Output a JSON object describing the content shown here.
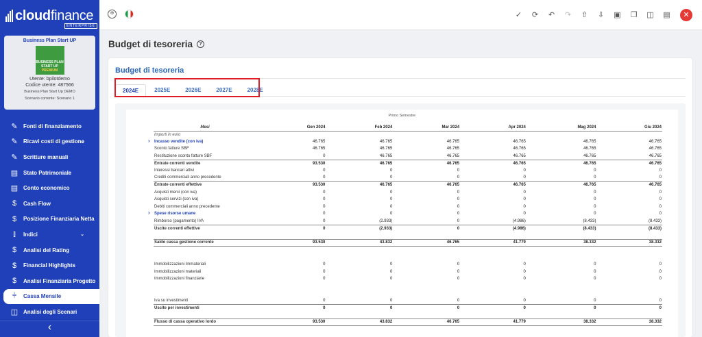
{
  "brand": {
    "name_bold": "cloud",
    "name_light": "finance",
    "edition": "ENTERPRISE"
  },
  "account": {
    "plan": "Business Plan Start UP",
    "thumb_line1": "BUSINESS PLAN",
    "thumb_line2": "START UP",
    "thumb_line3": "PREMIUM",
    "user": "Utente: bpilotdemo",
    "code": "Codice utente: 487566",
    "company": "Business Plan Start Up DEMO",
    "scenario": "Scenario corrente: Scenario 1"
  },
  "nav": [
    {
      "label": "Fonti di finanziamento",
      "icon": "edit-icon"
    },
    {
      "label": "Ricavi costi di gestione",
      "icon": "edit-icon"
    },
    {
      "label": "Scritture manuali",
      "icon": "edit-icon"
    },
    {
      "label": "Stato Patrimoniale",
      "icon": "document-icon"
    },
    {
      "label": "Conto economico",
      "icon": "document-icon"
    },
    {
      "label": "Cash Flow",
      "icon": "dollar-icon"
    },
    {
      "label": "Posizione Finanziaria Netta",
      "icon": "dollar-icon"
    },
    {
      "label": "Indici",
      "icon": "bar-chart-icon"
    },
    {
      "label": "Analisi del Rating",
      "icon": "dollar-icon"
    },
    {
      "label": "Financial Highlights",
      "icon": "dollar-icon"
    },
    {
      "label": "Analisi Finanziaria Progetto",
      "icon": "dollar-icon"
    },
    {
      "label": "Cassa Mensile",
      "icon": "sliders-icon"
    },
    {
      "label": "Analisi degli Scenari",
      "icon": "columns-icon"
    }
  ],
  "page": {
    "title": "Budget di tesoreria",
    "panel_title": "Budget di tesoreria"
  },
  "tabs": [
    "2024E",
    "2025E",
    "2026E",
    "2027E",
    "2028E"
  ],
  "sheet": {
    "semester": "Primo Semestre",
    "header": [
      "Mesi",
      "Gen 2024",
      "Feb 2024",
      "Mar 2024",
      "Apr 2024",
      "Mag 2024",
      "Giu 2024"
    ],
    "rows": [
      {
        "t": "unit",
        "label": "Importi in euro",
        "v": [
          "",
          "",
          "",
          "",
          "",
          ""
        ]
      },
      {
        "t": "link",
        "label": "Incasso vendite (con iva)",
        "v": [
          "46.765",
          "46.765",
          "46.765",
          "46.765",
          "46.765",
          "46.765"
        ]
      },
      {
        "t": "n",
        "label": "Sconto fatture SBF",
        "v": [
          "46.765",
          "46.765",
          "46.765",
          "46.765",
          "46.765",
          "46.765"
        ]
      },
      {
        "t": "n",
        "label": "Restituzione sconto fatture SBF",
        "v": [
          "0",
          "46.765",
          "46.765",
          "46.765",
          "46.765",
          "46.765"
        ]
      },
      {
        "t": "b",
        "label": "Entrate correnti vendite",
        "v": [
          "93.530",
          "46.765",
          "46.765",
          "46.765",
          "46.765",
          "46.765"
        ]
      },
      {
        "t": "n",
        "label": "Interessi bancari attivi",
        "v": [
          "0",
          "0",
          "0",
          "0",
          "0",
          "0"
        ]
      },
      {
        "t": "n",
        "label": "Crediti commerciali anno precedente",
        "v": [
          "0",
          "0",
          "0",
          "0",
          "0",
          "0"
        ]
      },
      {
        "t": "b",
        "label": "Entrate correnti effettive",
        "v": [
          "93.530",
          "46.765",
          "46.765",
          "46.765",
          "46.765",
          "46.765"
        ]
      },
      {
        "t": "n",
        "label": "Acquisti merci (con iva)",
        "v": [
          "0",
          "0",
          "0",
          "0",
          "0",
          "0"
        ]
      },
      {
        "t": "n",
        "label": "Acquisti servizi (con iva)",
        "v": [
          "0",
          "0",
          "0",
          "0",
          "0",
          "0"
        ]
      },
      {
        "t": "n",
        "label": "Debiti commerciali anno precedente",
        "v": [
          "0",
          "0",
          "0",
          "0",
          "0",
          "0"
        ]
      },
      {
        "t": "link",
        "label": "Spese risorse umane",
        "v": [
          "0",
          "0",
          "0",
          "0",
          "0",
          "0"
        ]
      },
      {
        "t": "n",
        "label": "Rimborso (pagamento) IVA",
        "v": [
          "0",
          "(2.933)",
          "0",
          "(4.986)",
          "(8.433)",
          "(8.433)"
        ]
      },
      {
        "t": "b",
        "label": "Uscite correnti effettive",
        "v": [
          "0",
          "(2.933)",
          "0",
          "(4.986)",
          "(8.433)",
          "(8.433)"
        ]
      },
      {
        "t": "e",
        "label": "",
        "v": [
          "",
          "",
          "",
          "",
          "",
          ""
        ]
      },
      {
        "t": "bd",
        "label": "Saldo cassa gestione corrente",
        "v": [
          "93.530",
          "43.832",
          "46.765",
          "41.779",
          "38.332",
          "38.332"
        ]
      },
      {
        "t": "e",
        "label": "",
        "v": [
          "",
          "",
          "",
          "",
          "",
          ""
        ]
      },
      {
        "t": "e",
        "label": "",
        "v": [
          "",
          "",
          "",
          "",
          "",
          ""
        ]
      },
      {
        "t": "n",
        "label": "Immobilizzazioni Immateriali",
        "v": [
          "0",
          "0",
          "0",
          "0",
          "0",
          "0"
        ]
      },
      {
        "t": "n",
        "label": "Immobilizzazioni materiali",
        "v": [
          "0",
          "0",
          "0",
          "0",
          "0",
          "0"
        ]
      },
      {
        "t": "n",
        "label": "Immobilizzazioni finanziarie",
        "v": [
          "0",
          "0",
          "0",
          "0",
          "0",
          "0"
        ]
      },
      {
        "t": "e",
        "label": "",
        "v": [
          "",
          "",
          "",
          "",
          "",
          ""
        ]
      },
      {
        "t": "e",
        "label": "",
        "v": [
          "",
          "",
          "",
          "",
          "",
          ""
        ]
      },
      {
        "t": "n",
        "label": "Iva su investimenti",
        "v": [
          "0",
          "0",
          "0",
          "0",
          "0",
          "0"
        ]
      },
      {
        "t": "b",
        "label": "Uscite per investimenti",
        "v": [
          "0",
          "0",
          "0",
          "0",
          "0",
          "0"
        ]
      },
      {
        "t": "e",
        "label": "",
        "v": [
          "",
          "",
          "",
          "",
          "",
          ""
        ]
      },
      {
        "t": "bd",
        "label": "Flusso di cassa operativo lordo",
        "v": [
          "93.530",
          "43.832",
          "46.765",
          "41.779",
          "38.332",
          "38.332"
        ]
      }
    ]
  }
}
